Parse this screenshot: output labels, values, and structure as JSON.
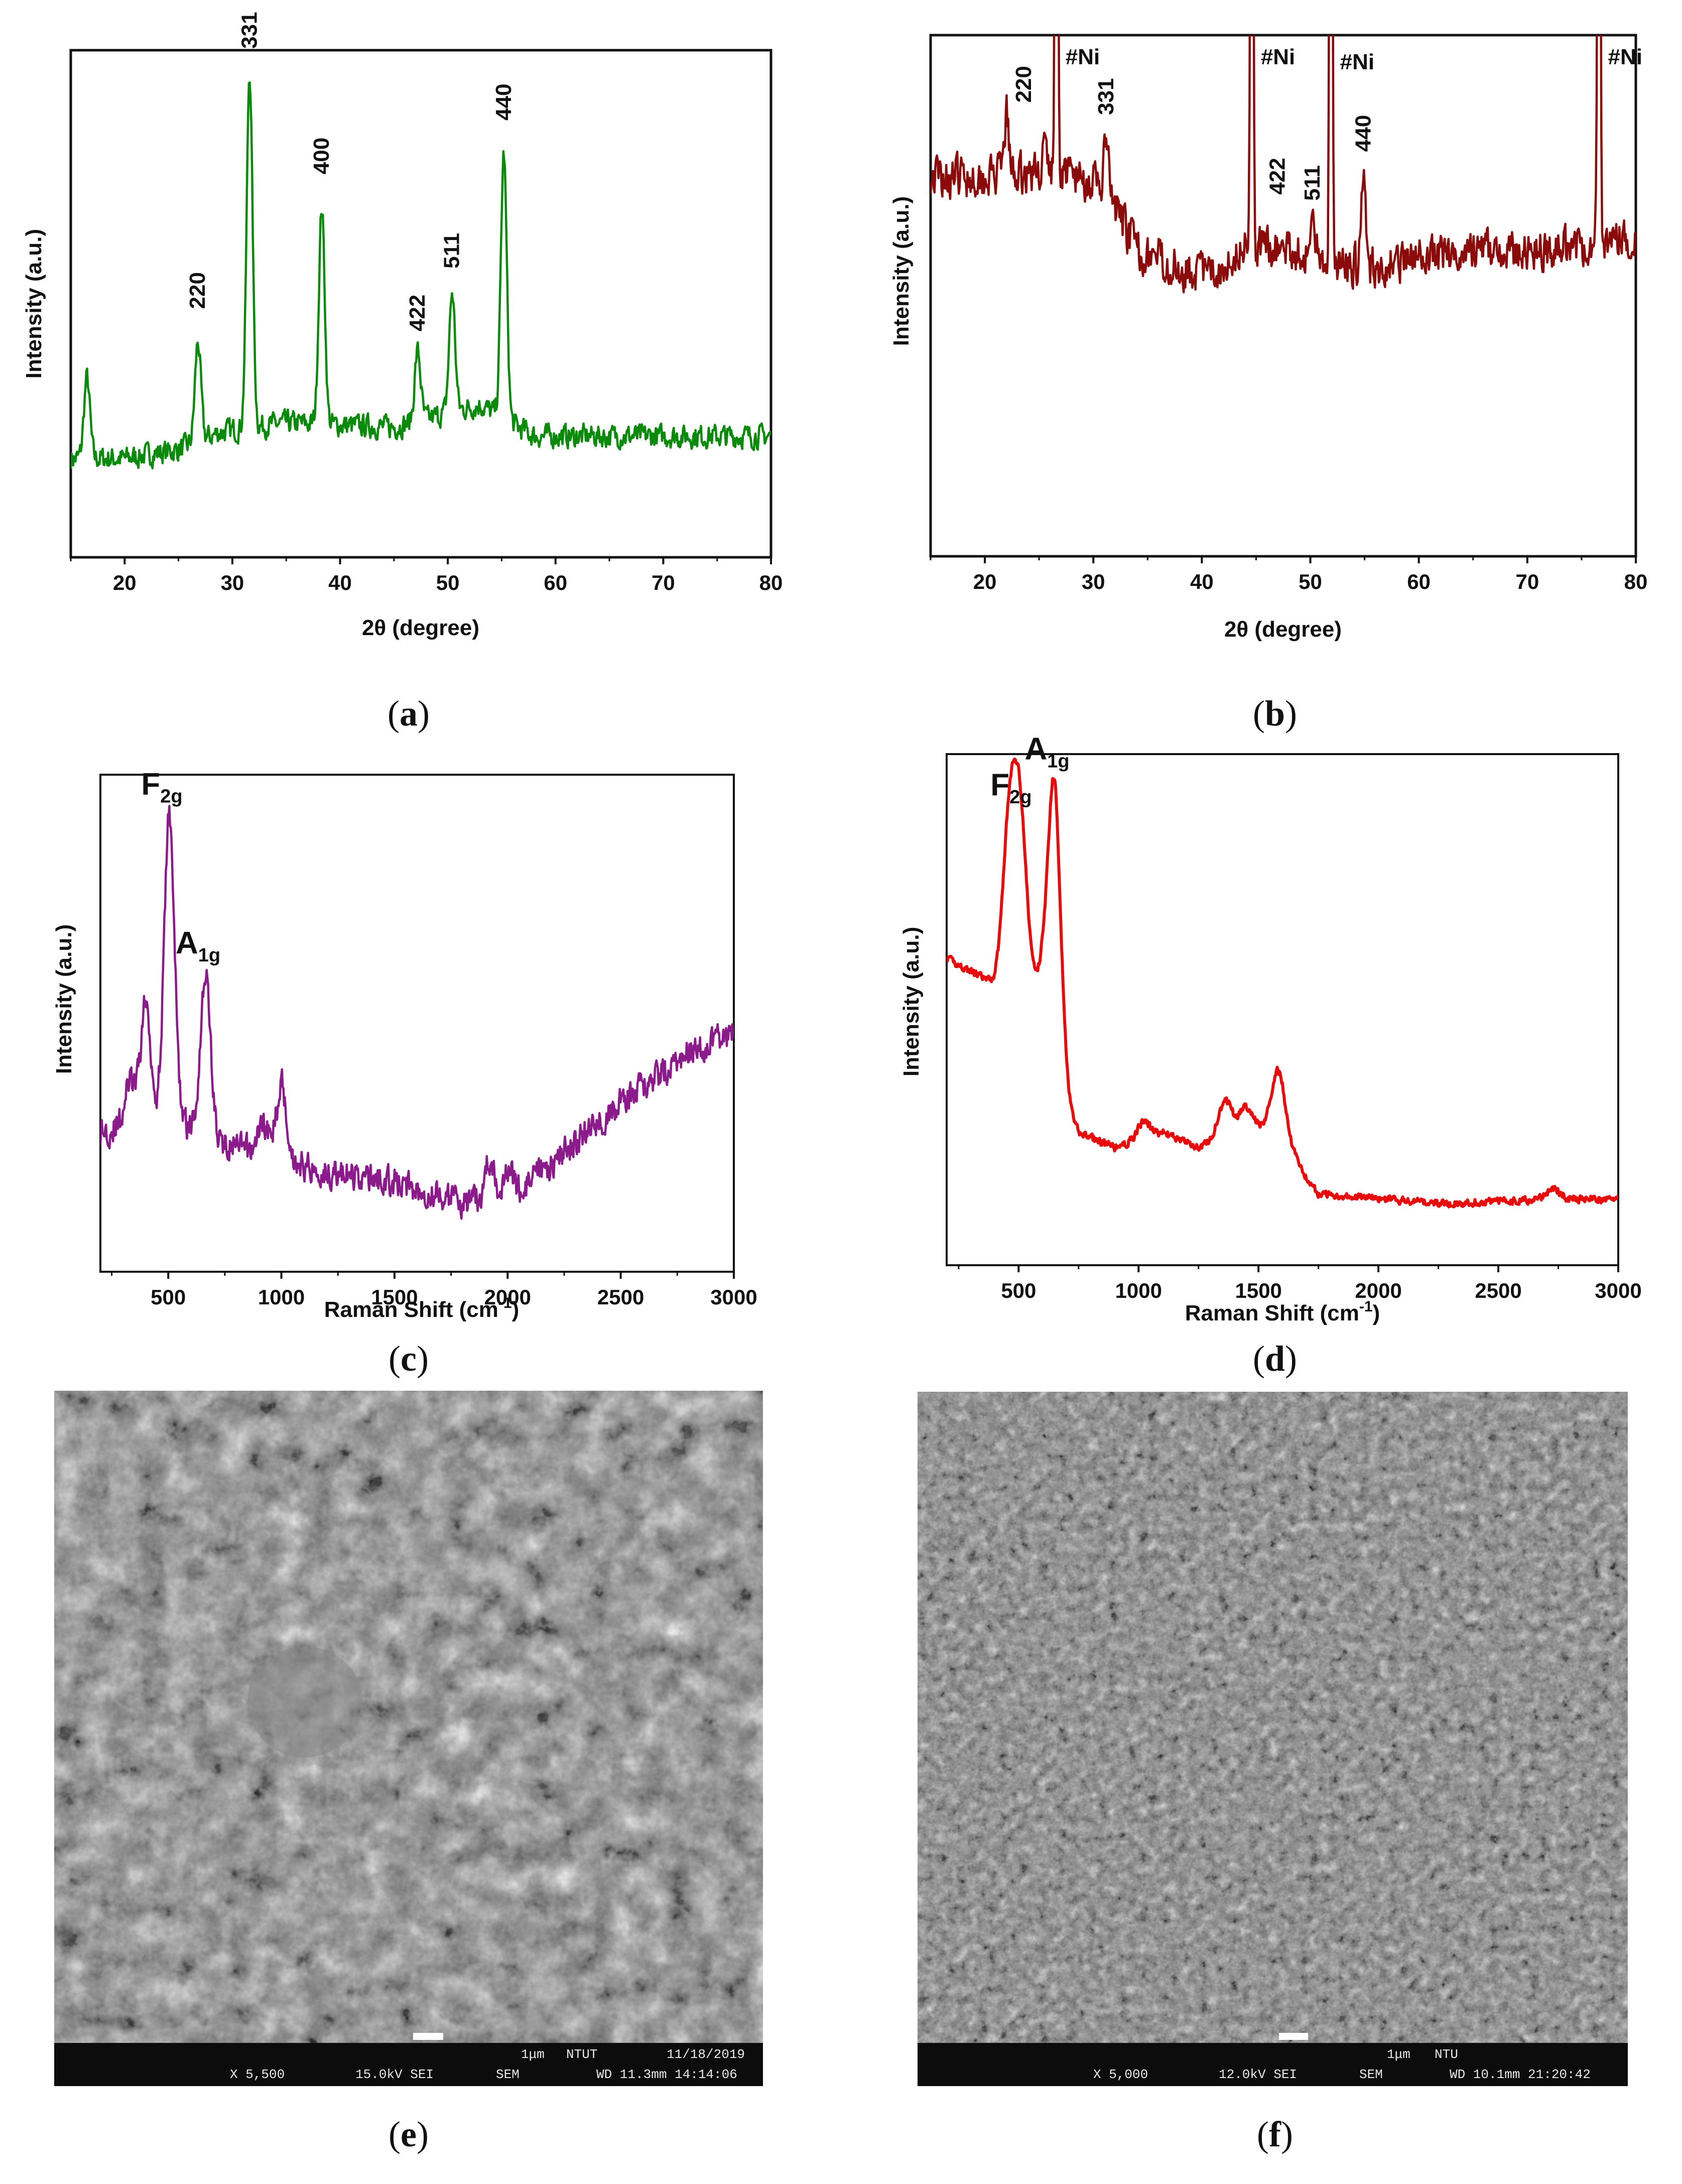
{
  "chart_data": [
    {
      "id": "a",
      "type": "line",
      "color": "#0a8a0a",
      "xlabel": "2θ (degree)",
      "ylabel": "Intensity (a.u.)",
      "xlim": [
        15,
        80
      ],
      "ylim": [
        0,
        100
      ],
      "xticks": [
        20,
        30,
        40,
        50,
        60,
        70,
        80
      ],
      "xtick_labels": [
        "20",
        "30",
        "40",
        "50",
        "60",
        "70",
        "80"
      ],
      "peaks": [
        [
          16.5,
          32
        ],
        [
          26.8,
          40
        ],
        [
          31.6,
          100
        ],
        [
          38.3,
          70
        ],
        [
          47.2,
          38
        ],
        [
          50.4,
          51
        ],
        [
          55.2,
          82
        ]
      ],
      "baseline": [
        [
          15,
          14
        ],
        [
          20,
          14
        ],
        [
          25,
          16
        ],
        [
          29,
          20
        ],
        [
          35,
          22
        ],
        [
          45,
          21
        ],
        [
          53,
          26
        ],
        [
          58,
          19
        ],
        [
          65,
          19
        ],
        [
          72,
          19
        ],
        [
          80,
          19
        ]
      ],
      "noise": 3.5,
      "peak_labels": [
        {
          "label": "220",
          "x": 26.8,
          "y": 46
        },
        {
          "label": "331",
          "x": 31.6,
          "y": 104
        },
        {
          "label": "400",
          "x": 38.3,
          "y": 76
        },
        {
          "label": "422",
          "x": 47.2,
          "y": 41
        },
        {
          "label": "511",
          "x": 50.4,
          "y": 55
        },
        {
          "label": "440",
          "x": 55.2,
          "y": 88
        }
      ]
    },
    {
      "id": "b",
      "type": "line",
      "color": "#8b0a0a",
      "xlabel": "2θ (degree)",
      "ylabel": "Intensity (a.u.)",
      "xlim": [
        15,
        80
      ],
      "ylim": [
        0,
        100
      ],
      "xticks": [
        20,
        30,
        40,
        50,
        60,
        70,
        80
      ],
      "xtick_labels": [
        "20",
        "30",
        "40",
        "50",
        "60",
        "70",
        "80"
      ],
      "peaks": [
        [
          22,
          62
        ],
        [
          25.5,
          57
        ],
        [
          26.6,
          200
        ],
        [
          31.2,
          58
        ],
        [
          44.6,
          200
        ],
        [
          50.2,
          44
        ],
        [
          51.9,
          200
        ],
        [
          54.9,
          52
        ],
        [
          76.6,
          200
        ]
      ],
      "baseline": [
        [
          15,
          52
        ],
        [
          22,
          52
        ],
        [
          27,
          53
        ],
        [
          31,
          50
        ],
        [
          34,
          40
        ],
        [
          38,
          37
        ],
        [
          41,
          36
        ],
        [
          44,
          41
        ],
        [
          48,
          40
        ],
        [
          55,
          37
        ],
        [
          58,
          38
        ],
        [
          65,
          40
        ],
        [
          72,
          40
        ],
        [
          80,
          42
        ]
      ],
      "noise": 4.5,
      "peak_labels": [
        {
          "label": "220",
          "x": 23.6,
          "y": 63
        },
        {
          "label": "331",
          "x": 31.2,
          "y": 61
        },
        {
          "label": "422",
          "x": 47.0,
          "y": 48
        },
        {
          "label": "511",
          "x": 50.2,
          "y": 47
        },
        {
          "label": "440",
          "x": 54.9,
          "y": 55
        }
      ],
      "ni_labels": [
        {
          "label": "#Ni",
          "x": 26.6
        },
        {
          "label": "#Ni",
          "x": 44.6
        },
        {
          "label": "#Ni",
          "x": 51.9
        },
        {
          "label": "#Ni",
          "x": 76.6
        }
      ]
    },
    {
      "id": "c",
      "type": "line",
      "color": "#8b1a8b",
      "xlabel": "Raman Shift (cm",
      "xlabel_sup": "-1",
      "xlabel_end": ")",
      "ylabel": "Intensity (a.u.)",
      "xlim": [
        200,
        3000
      ],
      "ylim": [
        0,
        100
      ],
      "xticks": [
        500,
        1000,
        1500,
        2000,
        2500,
        3000
      ],
      "xtick_labels": [
        "500",
        "1000",
        "1500",
        "2000",
        "2500",
        "3000"
      ],
      "peaks": [
        [
          330,
          38
        ],
        [
          400,
          54
        ],
        [
          505,
          92
        ],
        [
          665,
          60
        ],
        [
          920,
          30
        ],
        [
          1000,
          38
        ],
        [
          1920,
          22
        ],
        [
          2000,
          21
        ]
      ],
      "baseline": [
        [
          200,
          28
        ],
        [
          500,
          32
        ],
        [
          700,
          26
        ],
        [
          900,
          24
        ],
        [
          1200,
          20
        ],
        [
          1500,
          18
        ],
        [
          1800,
          14
        ],
        [
          2000,
          14
        ],
        [
          2200,
          22
        ],
        [
          2500,
          34
        ],
        [
          2800,
          44
        ],
        [
          3000,
          48
        ]
      ],
      "noise": 4,
      "peak_labels": [
        {
          "label": "F",
          "sub": "2g",
          "x": 505,
          "y": 94
        },
        {
          "label": "A",
          "sub": "1g",
          "x": 665,
          "y": 62
        }
      ]
    },
    {
      "id": "d",
      "type": "line",
      "color": "#e80b0b",
      "xlabel": "Raman Shift (cm",
      "xlabel_sup": "-1",
      "xlabel_end": ")",
      "ylabel": "Intensity (a.u.)",
      "xlim": [
        200,
        3000
      ],
      "ylim": [
        0,
        100
      ],
      "xticks": [
        500,
        1000,
        1500,
        2000,
        2500,
        3000
      ],
      "xtick_labels": [
        "500",
        "1000",
        "1500",
        "2000",
        "2500",
        "3000"
      ],
      "peaks": [
        [
          460,
          85
        ],
        [
          505,
          88
        ],
        [
          650,
          95
        ],
        [
          1020,
          28
        ],
        [
          1360,
          32
        ],
        [
          1450,
          31
        ],
        [
          1580,
          38
        ],
        [
          2730,
          15
        ]
      ],
      "baseline": [
        [
          200,
          60
        ],
        [
          400,
          55
        ],
        [
          600,
          56
        ],
        [
          670,
          34
        ],
        [
          750,
          26
        ],
        [
          900,
          23
        ],
        [
          1100,
          26
        ],
        [
          1250,
          23
        ],
        [
          1400,
          27
        ],
        [
          1600,
          27
        ],
        [
          1700,
          17
        ],
        [
          1750,
          14
        ],
        [
          2000,
          13
        ],
        [
          2300,
          12
        ],
        [
          2700,
          13
        ],
        [
          3000,
          13
        ]
      ],
      "noise": 1,
      "peak_labels": [
        {
          "label": "F",
          "sub": "2g",
          "x": 500,
          "y": 90
        },
        {
          "label": "A",
          "sub": "1g",
          "x": 650,
          "y": 97
        }
      ]
    }
  ],
  "captions": {
    "a": "a",
    "b": "b",
    "c": "c",
    "d": "d",
    "e": "e",
    "f": "f"
  },
  "sem_e": {
    "scale": "1μm",
    "inst": "NTUT",
    "date": "11/18/2019",
    "mag": "X 5,500",
    "kv": "15.0kV SEI",
    "mode": "SEM",
    "wd": "WD 11.3mm 14:14:06"
  },
  "sem_f": {
    "scale": "1μm",
    "inst": "NTU",
    "mag": "X 5,000",
    "kv": "12.0kV SEI",
    "mode": "SEM",
    "wd": "WD 10.1mm 21:20:42"
  }
}
